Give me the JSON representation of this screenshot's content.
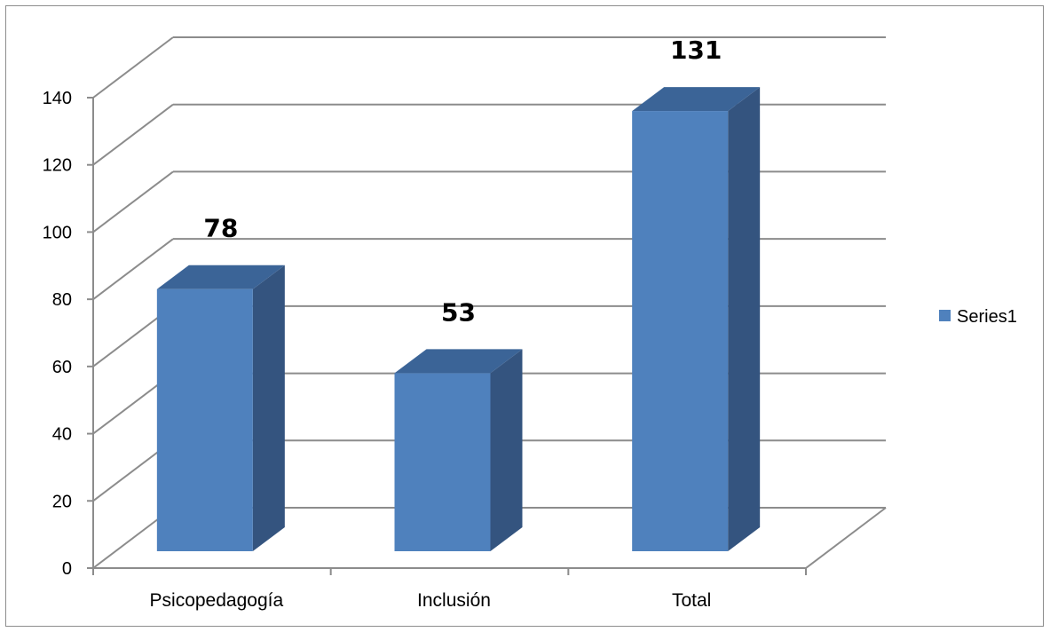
{
  "chart_data": {
    "type": "bar",
    "style": "3d-column",
    "categories": [
      "Psicopedagogía",
      "Inclusión",
      "Total"
    ],
    "series": [
      {
        "name": "Series1",
        "values": [
          78,
          53,
          131
        ]
      }
    ],
    "ylim": [
      0,
      140
    ],
    "yticks": [
      "0",
      "20",
      "40",
      "60",
      "80",
      "100",
      "120",
      "140"
    ],
    "data_labels": [
      "78",
      "53",
      "131"
    ],
    "grid": true,
    "legend": "right",
    "colors": {
      "bar_front": "#4f81bd",
      "bar_top": "#3b6497",
      "bar_side": "#34547f",
      "gridline": "#8c8c8c"
    }
  }
}
